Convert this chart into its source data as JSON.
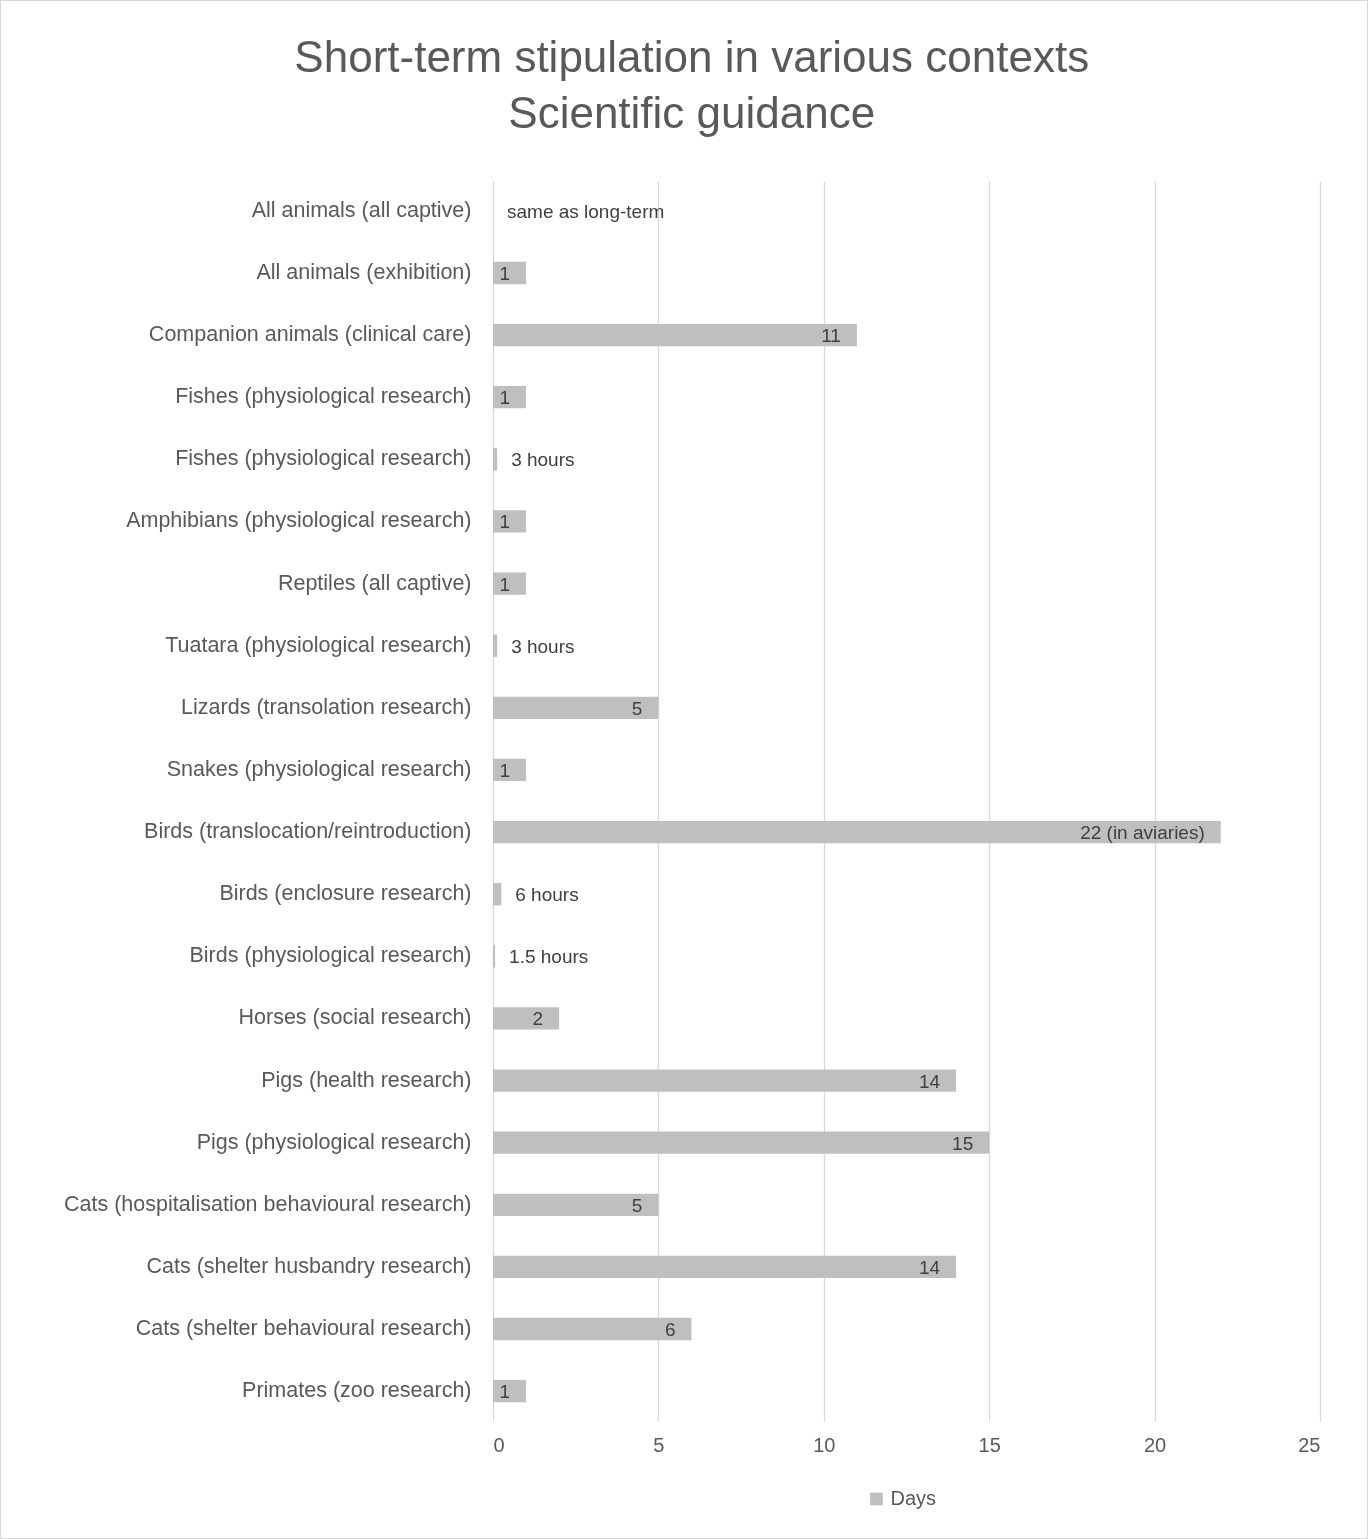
{
  "chart_data": {
    "type": "bar",
    "orientation": "horizontal",
    "title": "Short-term stipulation in various contexts",
    "subtitle": "Scientific guidance",
    "categories": [
      "All animals (all captive)",
      "All animals (exhibition)",
      "Companion animals (clinical care)",
      "Fishes (physiological research)",
      "Fishes (physiological research)",
      "Amphibians (physiological research)",
      "Reptiles (all captive)",
      "Tuatara (physiological research)",
      "Lizards (transolation research)",
      "Snakes (physiological research)",
      "Birds (translocation/reintroduction)",
      "Birds (enclosure research)",
      "Birds (physiological research)",
      "Horses (social research)",
      "Pigs (health research)",
      "Pigs (physiological research)",
      "Cats (hospitalisation behavioural research)",
      "Cats (shelter husbandry research)",
      "Cats (shelter behavioural research)",
      "Primates (zoo research)"
    ],
    "series": [
      {
        "name": "Days",
        "color": "#bfbfbf",
        "values": [
          null,
          1,
          11,
          1,
          0.125,
          1,
          1,
          0.125,
          5,
          1,
          22,
          0.25,
          0.0625,
          2,
          14,
          15,
          5,
          14,
          6,
          1
        ],
        "value_labels": [
          "same as long-term",
          "1",
          "11",
          "1",
          null,
          "1",
          "1",
          null,
          "5",
          "1",
          "22 (in aviaries)",
          null,
          null,
          "2",
          "14",
          "15",
          "5",
          "14",
          "6",
          "1"
        ]
      }
    ],
    "annotations": [
      {
        "text": "3 hours",
        "x": 0.125,
        "y": "Fishes (physiological research)"
      },
      {
        "text": "3 hours",
        "x": 0.125,
        "y": "Tuatara (physiological research)"
      },
      {
        "text": "6 hours",
        "x": 0.25,
        "y": "Birds (enclosure research)"
      },
      {
        "text": "1.5 hours",
        "x": 0.0625,
        "y": "Birds (physiological research)"
      }
    ],
    "xlim": [
      0,
      25
    ],
    "xticks": [
      0,
      5,
      10,
      15,
      20,
      25
    ],
    "grid": "x",
    "legend": "bottom"
  }
}
